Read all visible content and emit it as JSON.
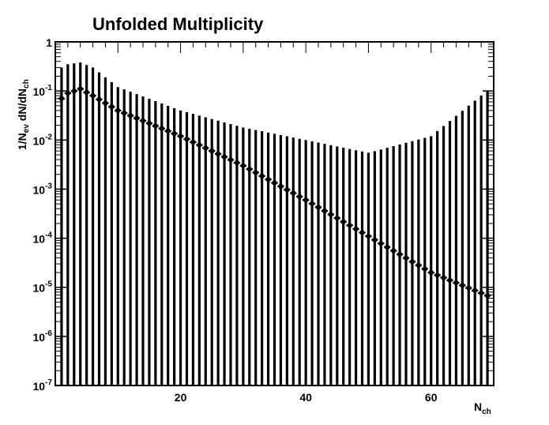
{
  "chart_data": {
    "type": "scatter",
    "title": "Unfolded Multiplicity",
    "xlabel": "N",
    "xlabel_sub": "ch",
    "ylabel_parts": [
      "1/N",
      "ev",
      " dN/dN",
      "ch"
    ],
    "y_scale": "log",
    "xlim": [
      0,
      70
    ],
    "ylim": [
      1e-07,
      1
    ],
    "grid": false,
    "x_ticks": [
      {
        "value": 20,
        "label": "20"
      },
      {
        "value": 40,
        "label": "40"
      },
      {
        "value": 60,
        "label": "60"
      }
    ],
    "y_ticks": [
      {
        "value": 1,
        "base": "1",
        "exp": ""
      },
      {
        "value": 0.1,
        "base": "10",
        "exp": "-1"
      },
      {
        "value": 0.01,
        "base": "10",
        "exp": "-2"
      },
      {
        "value": 0.001,
        "base": "10",
        "exp": "-3"
      },
      {
        "value": 0.0001,
        "base": "10",
        "exp": "-4"
      },
      {
        "value": 1e-05,
        "base": "10",
        "exp": "-5"
      },
      {
        "value": 1e-06,
        "base": "10",
        "exp": "-6"
      },
      {
        "value": 1e-07,
        "base": "10",
        "exp": "-7"
      }
    ],
    "x_anchor": [
      1,
      2,
      4,
      6,
      10,
      20,
      30,
      40,
      50,
      60,
      70
    ],
    "y_anchor": [
      0.07,
      0.09,
      0.11,
      0.08,
      0.04,
      0.012,
      0.003,
      0.0006,
      0.00011,
      2e-05,
      6e-06
    ],
    "upper_anchor": [
      0.3,
      0.35,
      0.38,
      0.3,
      0.12,
      0.04,
      0.018,
      0.01,
      0.0055,
      0.012,
      0.13
    ]
  }
}
